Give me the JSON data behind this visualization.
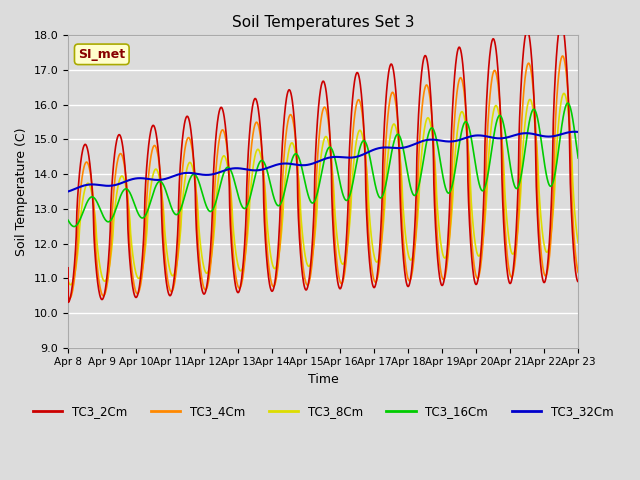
{
  "title": "Soil Temperatures Set 3",
  "xlabel": "Time",
  "ylabel": "Soil Temperature (C)",
  "ylim": [
    9.0,
    18.0
  ],
  "yticks": [
    9.0,
    10.0,
    11.0,
    12.0,
    13.0,
    14.0,
    15.0,
    16.0,
    17.0,
    18.0
  ],
  "series_colors": {
    "TC3_2Cm": "#CC0000",
    "TC3_4Cm": "#FF8800",
    "TC3_8Cm": "#DDDD00",
    "TC3_16Cm": "#00CC00",
    "TC3_32Cm": "#0000CC"
  },
  "background_color": "#DCDCDC",
  "plot_bg_color": "#DCDCDC",
  "grid_color": "#FFFFFF",
  "annotation_text": "SI_met",
  "annotation_bg": "#FFFFCC",
  "annotation_border": "#AAAA00",
  "linewidth": 1.2
}
